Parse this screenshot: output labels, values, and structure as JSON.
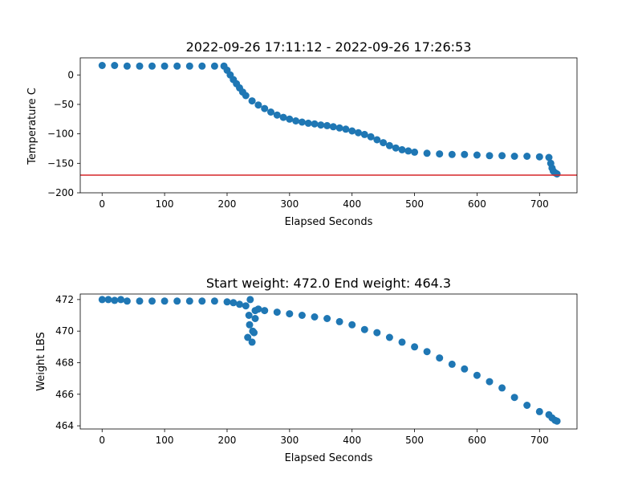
{
  "colors": {
    "series": "#1f77b4",
    "threshold": "#d62728"
  },
  "chart_data": [
    {
      "type": "scatter",
      "title": "2022-09-26 17:11:12 - 2022-09-26 17:26:53",
      "xlabel": "Elapsed Seconds",
      "ylabel": "Temperature C",
      "xlim": [
        -35,
        760
      ],
      "ylim": [
        -200,
        29
      ],
      "xticks": [
        0,
        100,
        200,
        300,
        400,
        500,
        600,
        700
      ],
      "xtick_labels": [
        "0",
        "100",
        "200",
        "300",
        "400",
        "500",
        "600",
        "700"
      ],
      "yticks": [
        0,
        -50,
        -100,
        -150,
        -200
      ],
      "ytick_labels": [
        "0",
        "−50",
        "−100",
        "−150",
        "−200"
      ],
      "hline": -170,
      "points": [
        [
          0,
          16
        ],
        [
          20,
          16
        ],
        [
          40,
          15
        ],
        [
          60,
          15
        ],
        [
          80,
          15
        ],
        [
          100,
          15
        ],
        [
          120,
          15
        ],
        [
          140,
          15
        ],
        [
          160,
          15
        ],
        [
          180,
          15
        ],
        [
          195,
          15
        ],
        [
          200,
          8
        ],
        [
          205,
          0
        ],
        [
          210,
          -8
        ],
        [
          215,
          -15
        ],
        [
          220,
          -22
        ],
        [
          225,
          -29
        ],
        [
          230,
          -35
        ],
        [
          240,
          -44
        ],
        [
          250,
          -51
        ],
        [
          260,
          -57
        ],
        [
          270,
          -63
        ],
        [
          280,
          -68
        ],
        [
          290,
          -72
        ],
        [
          300,
          -75
        ],
        [
          310,
          -78
        ],
        [
          320,
          -80
        ],
        [
          330,
          -82
        ],
        [
          340,
          -83
        ],
        [
          350,
          -85
        ],
        [
          360,
          -86
        ],
        [
          370,
          -88
        ],
        [
          380,
          -90
        ],
        [
          390,
          -92
        ],
        [
          400,
          -95
        ],
        [
          410,
          -98
        ],
        [
          420,
          -101
        ],
        [
          430,
          -105
        ],
        [
          440,
          -110
        ],
        [
          450,
          -115
        ],
        [
          460,
          -120
        ],
        [
          470,
          -124
        ],
        [
          480,
          -127
        ],
        [
          490,
          -129
        ],
        [
          500,
          -131
        ],
        [
          520,
          -133
        ],
        [
          540,
          -134
        ],
        [
          560,
          -135
        ],
        [
          580,
          -135
        ],
        [
          600,
          -136
        ],
        [
          620,
          -137
        ],
        [
          640,
          -137
        ],
        [
          660,
          -138
        ],
        [
          680,
          -138
        ],
        [
          700,
          -139
        ],
        [
          715,
          -140
        ],
        [
          718,
          -150
        ],
        [
          720,
          -158
        ],
        [
          722,
          -163
        ],
        [
          725,
          -166
        ],
        [
          728,
          -168
        ]
      ]
    },
    {
      "type": "scatter",
      "title": "Start weight: 472.0 End weight: 464.3",
      "xlabel": "Elapsed Seconds",
      "ylabel": "Weight LBS",
      "xlim": [
        -35,
        760
      ],
      "ylim": [
        463.8,
        472.35
      ],
      "xticks": [
        0,
        100,
        200,
        300,
        400,
        500,
        600,
        700
      ],
      "xtick_labels": [
        "0",
        "100",
        "200",
        "300",
        "400",
        "500",
        "600",
        "700"
      ],
      "yticks": [
        464,
        466,
        468,
        470,
        472
      ],
      "ytick_labels": [
        "464",
        "466",
        "468",
        "470",
        "472"
      ],
      "points": [
        [
          0,
          472.0
        ],
        [
          10,
          472.0
        ],
        [
          20,
          471.95
        ],
        [
          30,
          472.0
        ],
        [
          40,
          471.9
        ],
        [
          60,
          471.9
        ],
        [
          80,
          471.9
        ],
        [
          100,
          471.9
        ],
        [
          120,
          471.9
        ],
        [
          140,
          471.9
        ],
        [
          160,
          471.9
        ],
        [
          180,
          471.9
        ],
        [
          200,
          471.85
        ],
        [
          210,
          471.8
        ],
        [
          220,
          471.7
        ],
        [
          230,
          471.6
        ],
        [
          233,
          469.6
        ],
        [
          235,
          471.0
        ],
        [
          236,
          470.4
        ],
        [
          237,
          472.0
        ],
        [
          240,
          469.3
        ],
        [
          241,
          470.0
        ],
        [
          243,
          469.9
        ],
        [
          245,
          470.8
        ],
        [
          245,
          471.3
        ],
        [
          250,
          471.4
        ],
        [
          260,
          471.3
        ],
        [
          280,
          471.2
        ],
        [
          300,
          471.1
        ],
        [
          320,
          471.0
        ],
        [
          340,
          470.9
        ],
        [
          360,
          470.8
        ],
        [
          380,
          470.6
        ],
        [
          400,
          470.4
        ],
        [
          420,
          470.1
        ],
        [
          440,
          469.9
        ],
        [
          460,
          469.6
        ],
        [
          480,
          469.3
        ],
        [
          500,
          469.0
        ],
        [
          520,
          468.7
        ],
        [
          540,
          468.3
        ],
        [
          560,
          467.9
        ],
        [
          580,
          467.6
        ],
        [
          600,
          467.2
        ],
        [
          620,
          466.8
        ],
        [
          640,
          466.4
        ],
        [
          660,
          465.8
        ],
        [
          680,
          465.3
        ],
        [
          700,
          464.9
        ],
        [
          715,
          464.7
        ],
        [
          720,
          464.5
        ],
        [
          725,
          464.35
        ],
        [
          728,
          464.3
        ]
      ]
    }
  ]
}
